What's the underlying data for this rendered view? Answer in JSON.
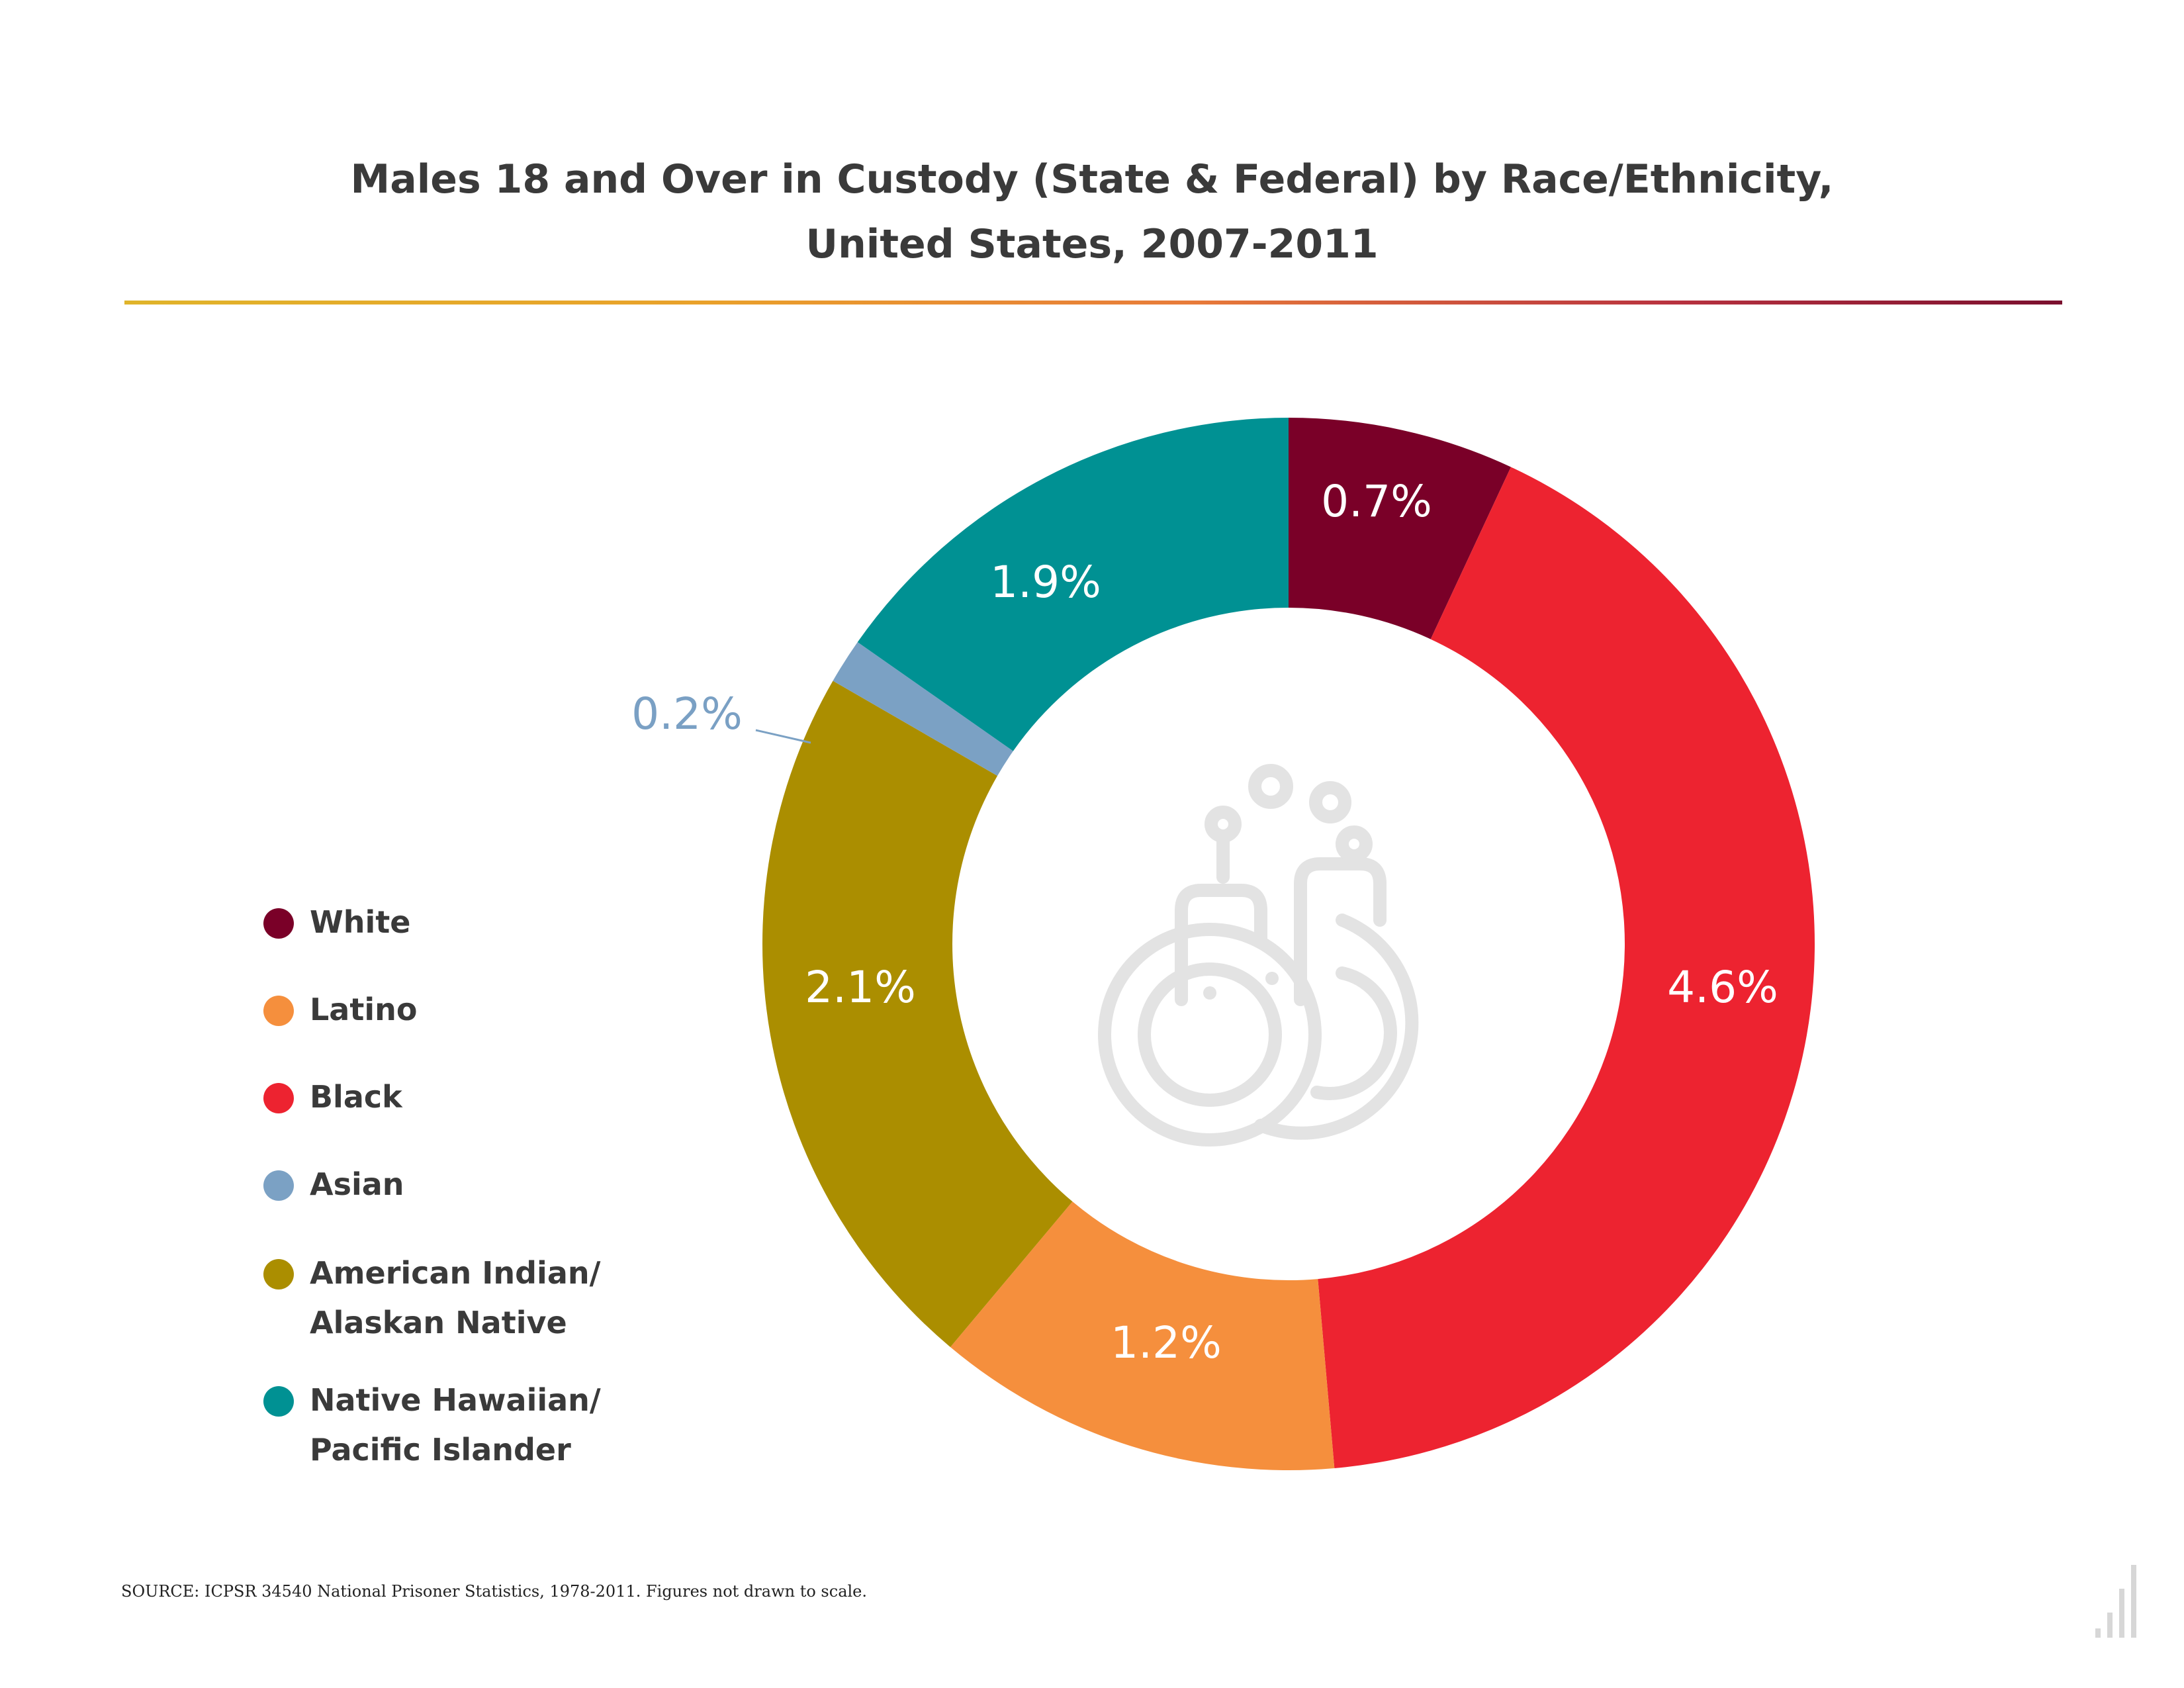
{
  "title_line1": "Males 18 and Over in Custody (State & Federal) by Race/Ethnicity,",
  "title_line2": "United States, 2007-2011",
  "source": "SOURCE: ICPSR 34540 National Prisoner Statistics, 1978-2011. Figures not drawn to scale.",
  "chart_data": {
    "type": "pie",
    "donut": true,
    "title": "Males 18 and Over in Custody (State & Federal) by Race/Ethnicity, United States, 2007-2011",
    "categories": [
      "White",
      "Black",
      "Latino",
      "American Indian/ Alaskan Native",
      "Asian",
      "Native Hawaiian/ Pacific Islander"
    ],
    "values": [
      0.7,
      4.6,
      1.2,
      2.1,
      0.2,
      1.9
    ],
    "labels": [
      "0.7%",
      "4.6%",
      "1.2%",
      "2.1%",
      "0.2%",
      "1.9%"
    ],
    "colors": [
      "#7a0028",
      "#ed2330",
      "#f58f3d",
      "#ab8e00",
      "#7ba1c4",
      "#009193"
    ],
    "legend": [
      {
        "lines": [
          "White"
        ],
        "color": "#7a0028"
      },
      {
        "lines": [
          "Latino"
        ],
        "color": "#f58f3d"
      },
      {
        "lines": [
          "Black"
        ],
        "color": "#ed2330"
      },
      {
        "lines": [
          "Asian"
        ],
        "color": "#7ba1c4"
      },
      {
        "lines": [
          "American Indian/",
          "Alaskan Native"
        ],
        "color": "#ab8e00"
      },
      {
        "lines": [
          "Native Hawaiian/",
          "Pacific Islander"
        ],
        "color": "#009193"
      }
    ],
    "legend_position": "left",
    "center_icon": "handcuffs-icon"
  }
}
